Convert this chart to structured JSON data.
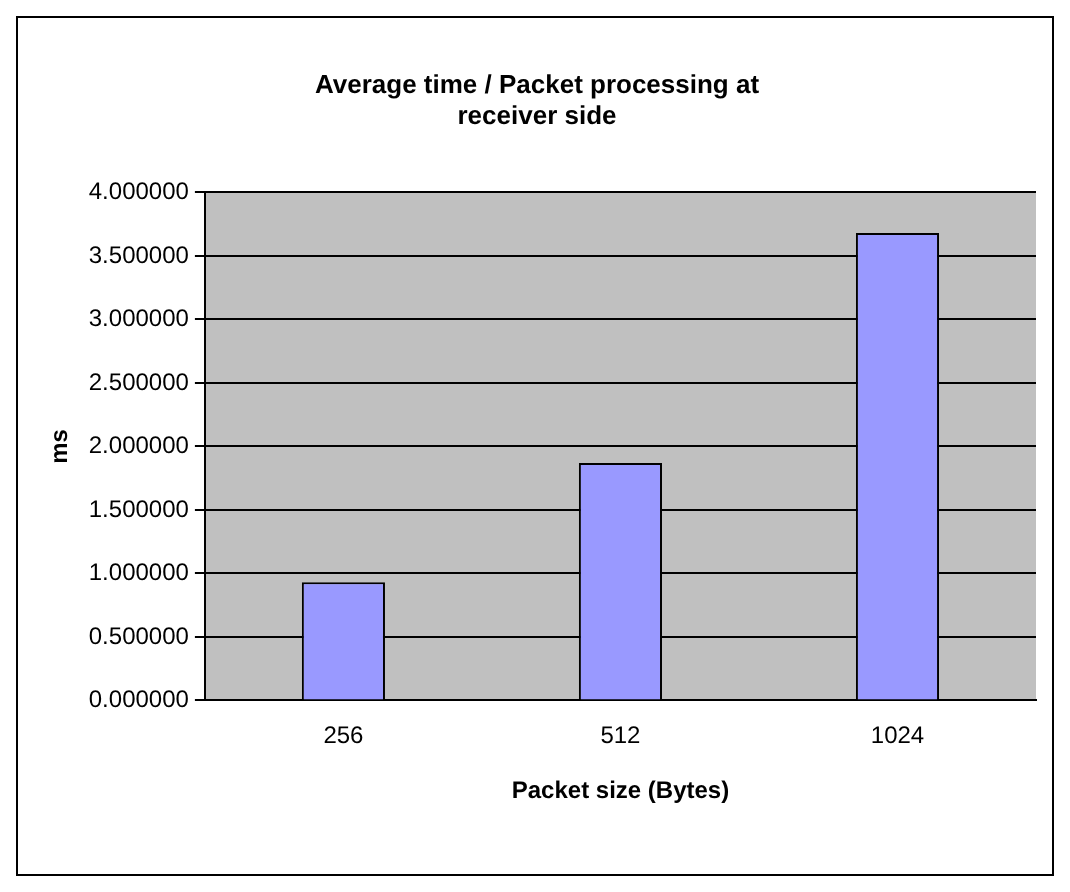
{
  "chart_data": {
    "type": "bar",
    "title": [
      "Average time / Packet processing at",
      "receiver side"
    ],
    "xlabel": "Packet size (Bytes)",
    "ylabel": "ms",
    "categories": [
      "256",
      "512",
      "1024"
    ],
    "values": [
      0.93,
      1.87,
      3.68
    ],
    "color": "#9999ff",
    "ylim": [
      0,
      4
    ],
    "yticks": [
      {
        "value": 0,
        "label": "0.000000"
      },
      {
        "value": 0.5,
        "label": "0.500000"
      },
      {
        "value": 1,
        "label": "1.000000"
      },
      {
        "value": 1.5,
        "label": "1.500000"
      },
      {
        "value": 2,
        "label": "2.000000"
      },
      {
        "value": 2.5,
        "label": "2.500000"
      },
      {
        "value": 3,
        "label": "3.000000"
      },
      {
        "value": 3.5,
        "label": "3.500000"
      },
      {
        "value": 4,
        "label": "4.000000"
      }
    ],
    "grid": "y",
    "legend": false
  }
}
